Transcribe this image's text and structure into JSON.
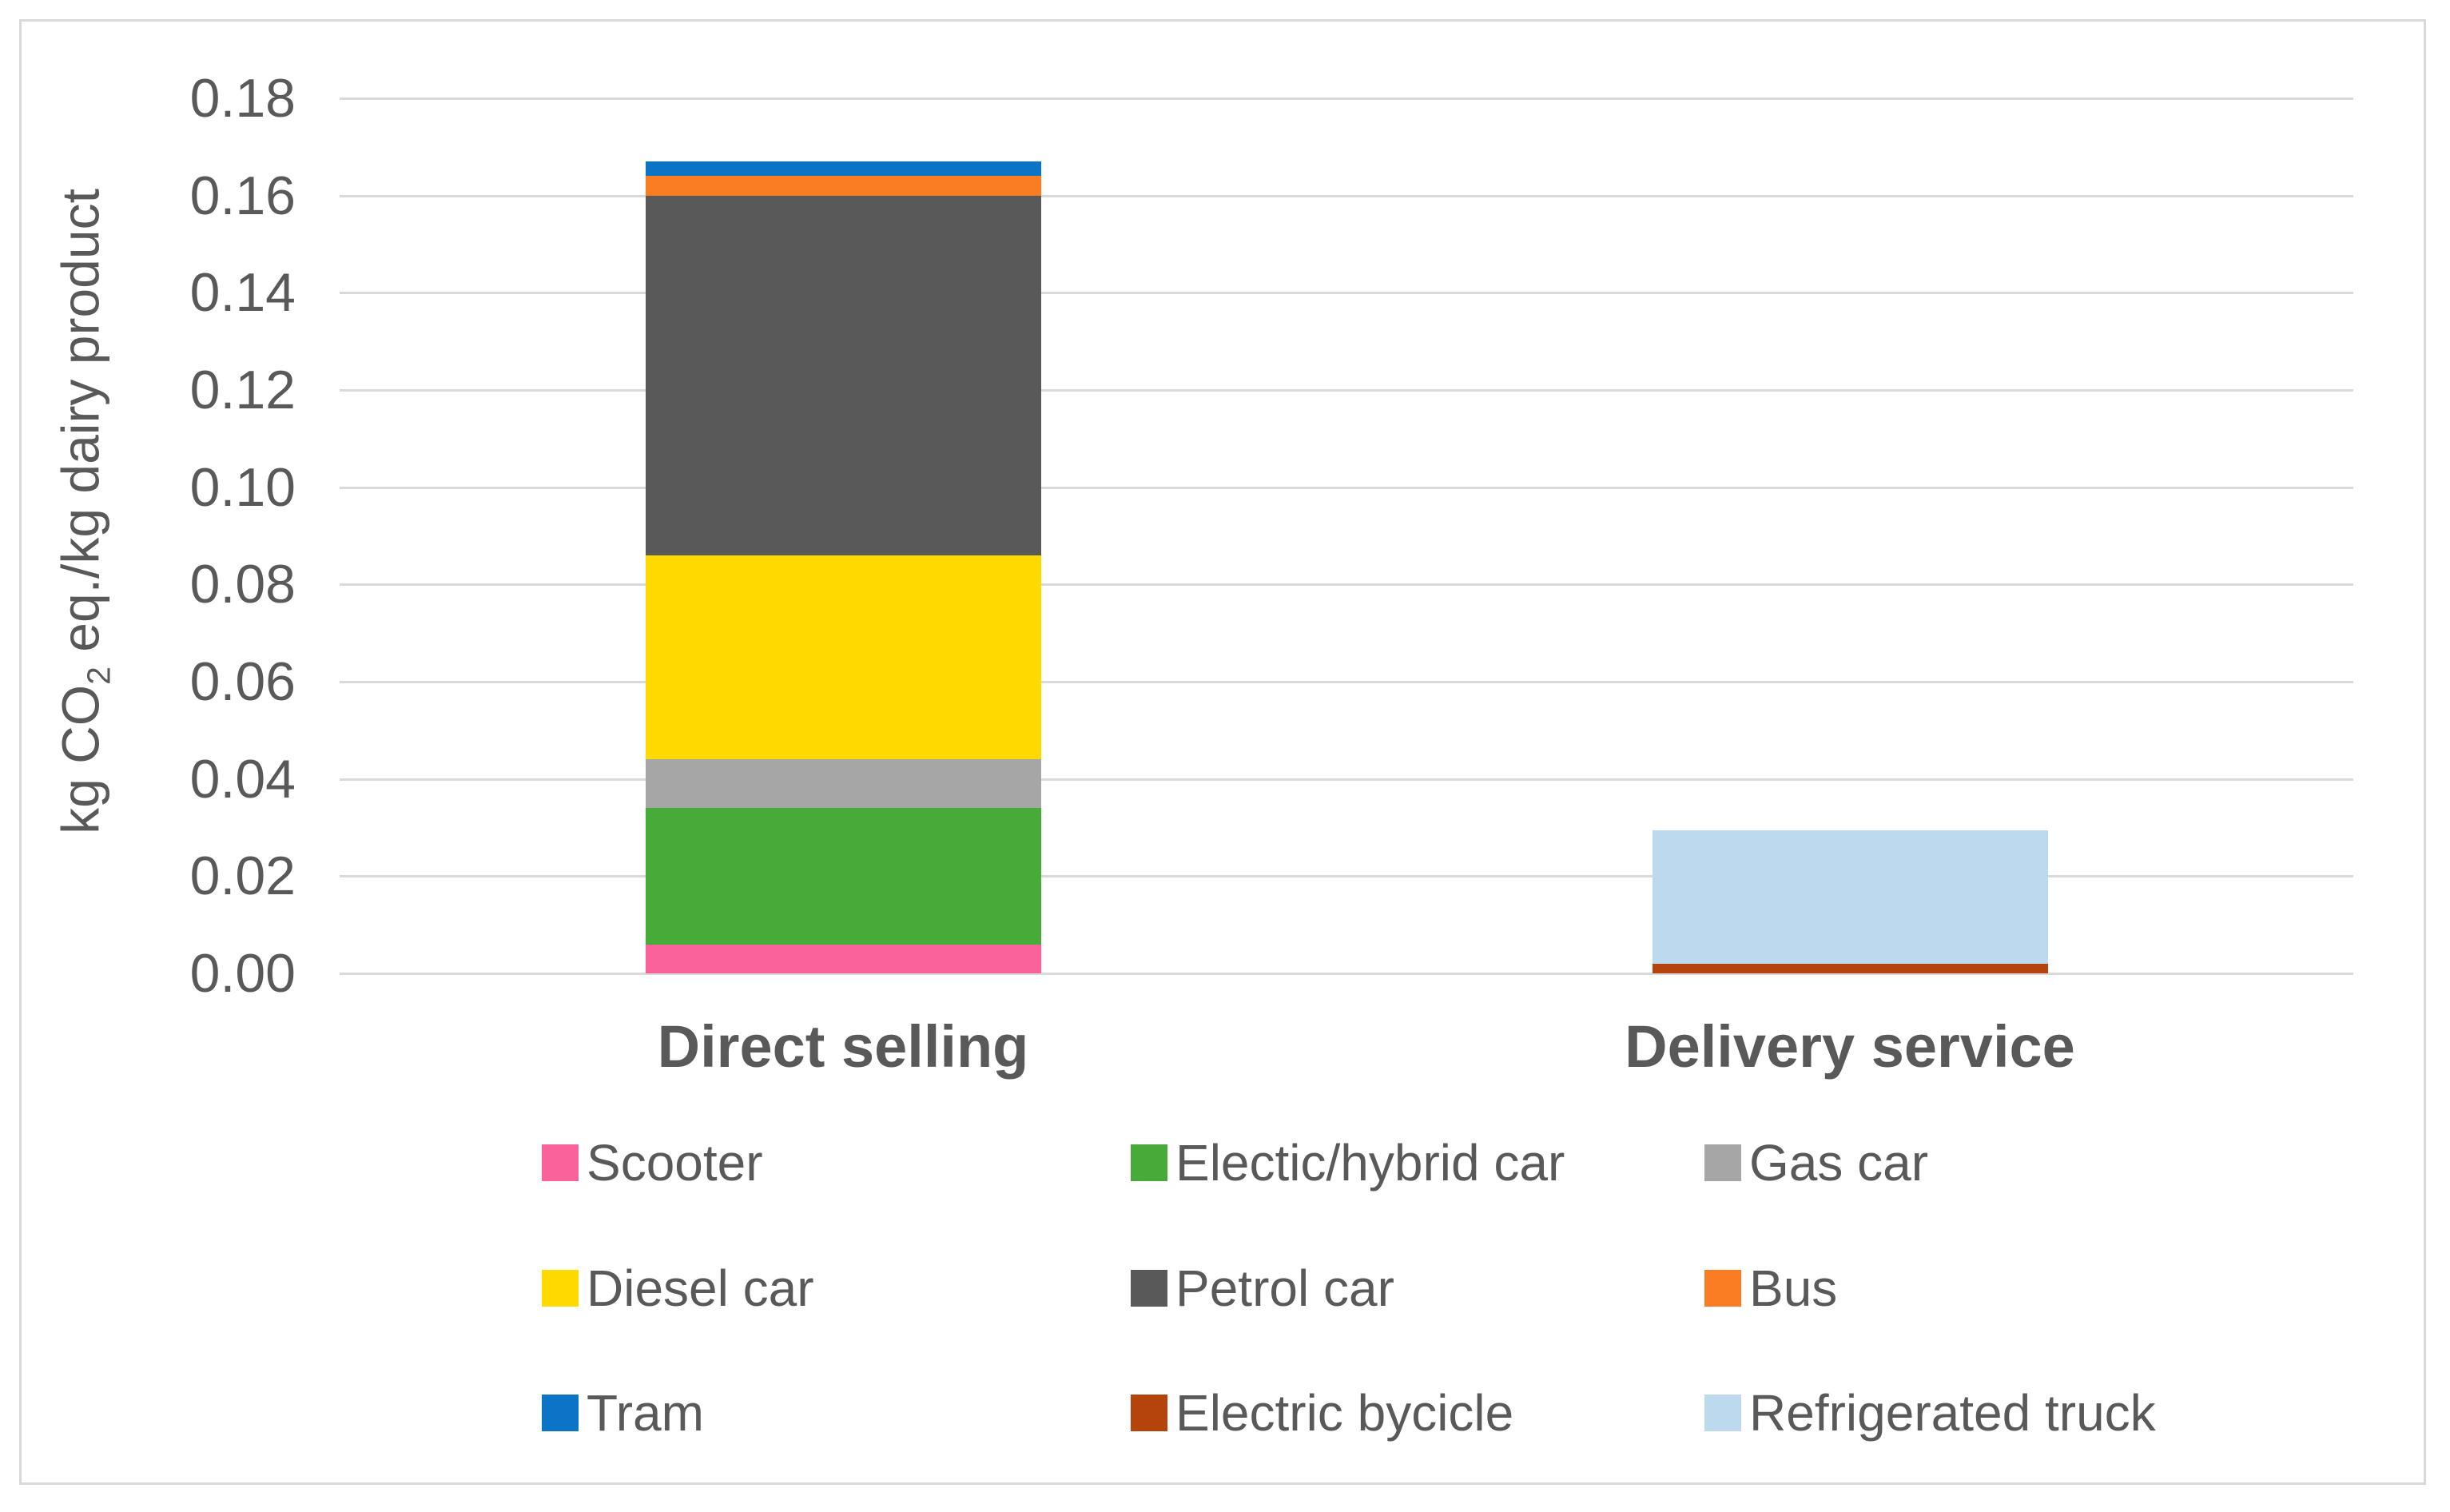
{
  "chart_data": {
    "type": "bar",
    "stacked": true,
    "title": "",
    "xlabel": "",
    "ylabel_prefix": "kg CO",
    "ylabel_sub": "2",
    "ylabel_suffix": " eq./kg dairy product",
    "y_axis": {
      "min": 0,
      "max": 0.18,
      "step": 0.02,
      "tick_labels": [
        "0.18",
        "0.16",
        "0.14",
        "0.12",
        "0.10",
        "0.08",
        "0.06",
        "0.04",
        "0.02",
        "0.00"
      ]
    },
    "grid": "horizontal",
    "legend_position": "bottom",
    "legend_columns": 3,
    "categories": [
      "Direct selling",
      "Delivery service"
    ],
    "series": [
      {
        "name": "Scooter",
        "color": "#FA629C",
        "values": [
          0.006,
          0
        ]
      },
      {
        "name": "Electic/hybrid car",
        "color": "#46AB39",
        "values": [
          0.028,
          0
        ]
      },
      {
        "name": "Gas car",
        "color": "#A6A6A6",
        "values": [
          0.01,
          0
        ]
      },
      {
        "name": "Diesel car",
        "color": "#FFD900",
        "values": [
          0.042,
          0
        ]
      },
      {
        "name": "Petrol car",
        "color": "#595959",
        "values": [
          0.074,
          0
        ]
      },
      {
        "name": "Bus",
        "color": "#FB7D23",
        "values": [
          0.004,
          0
        ]
      },
      {
        "name": "Tram",
        "color": "#0B74C4",
        "values": [
          0.003,
          0
        ]
      },
      {
        "name": "Electric bycicle",
        "color": "#B5430C",
        "values": [
          0,
          0.002
        ]
      },
      {
        "name": "Refrigerated truck",
        "color": "#BCD9EE",
        "values": [
          0,
          0.0275
        ]
      }
    ],
    "totals": {
      "Direct selling": 0.167,
      "Delivery service": 0.0295
    },
    "colors": {
      "text": "#595959",
      "gridline": "#D9D9D9",
      "frame_border": "#D9D9D9",
      "background": "#FFFFFF"
    }
  }
}
